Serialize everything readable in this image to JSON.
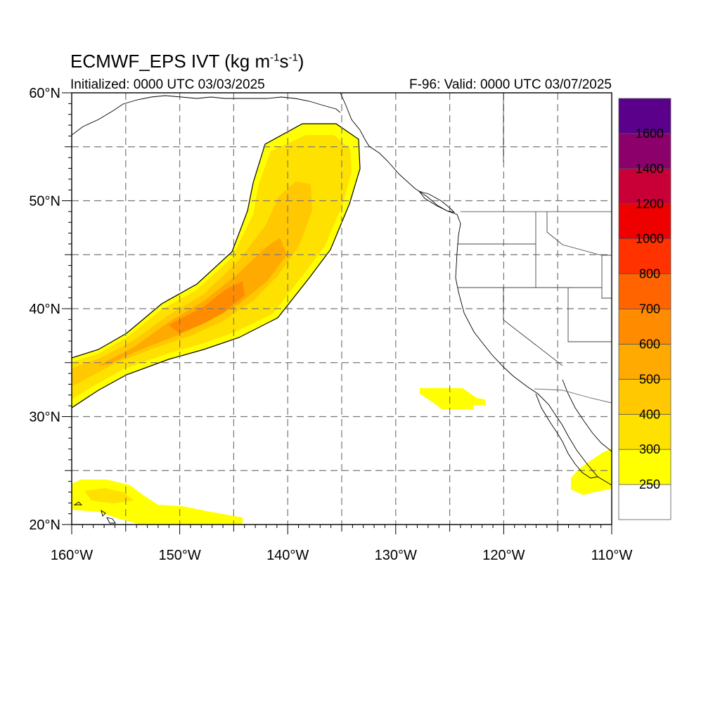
{
  "title": {
    "main": "ECMWF_EPS IVT (kg m",
    "exp1": "-1",
    "mid": "s",
    "exp2": "-1",
    "end": ")"
  },
  "subtitle_left": "Initialized: 0000 UTC 03/03/2025",
  "subtitle_right": "F-96: Valid: 0000 UTC 03/07/2025",
  "chart_data": {
    "type": "heatmap",
    "region": {
      "lon_range": [
        -160,
        -110
      ],
      "lat_range": [
        20,
        60
      ]
    },
    "x_ticks": [
      "160°W",
      "150°W",
      "140°W",
      "130°W",
      "120°W",
      "110°W"
    ],
    "y_ticks": [
      "60°N",
      "50°N",
      "40°N",
      "30°N",
      "20°N"
    ],
    "grid": true,
    "colorbar": {
      "placement": "right",
      "labels": [
        "250",
        "300",
        "400",
        "500",
        "600",
        "700",
        "800",
        "1000",
        "1200",
        "1400",
        "1600"
      ],
      "colors": [
        "#ffffff",
        "#ffff00",
        "#ffe100",
        "#ffc800",
        "#ffaa00",
        "#ff8c00",
        "#ff6400",
        "#ff3200",
        "#ee0000",
        "#c80037",
        "#8b006b",
        "#5a008a"
      ]
    },
    "regions": [
      {
        "name": "atmospheric-river-outer",
        "level": 250,
        "color": "#ffff00"
      },
      {
        "name": "atmospheric-river-300",
        "level": 300,
        "color": "#ffe100"
      },
      {
        "name": "atmospheric-river-400",
        "level": 400,
        "color": "#ffc800"
      },
      {
        "name": "atmospheric-river-500",
        "level": 500,
        "color": "#ffaa00"
      },
      {
        "name": "atmospheric-river-core",
        "level": 600,
        "color": "#ff8c00"
      },
      {
        "name": "hawaii-moisture",
        "level": 250,
        "color": "#ffff00"
      },
      {
        "name": "offshore-patch",
        "level": 250,
        "color": "#ffff00"
      },
      {
        "name": "baja-patch",
        "level": 250,
        "color": "#ffff00"
      }
    ]
  }
}
